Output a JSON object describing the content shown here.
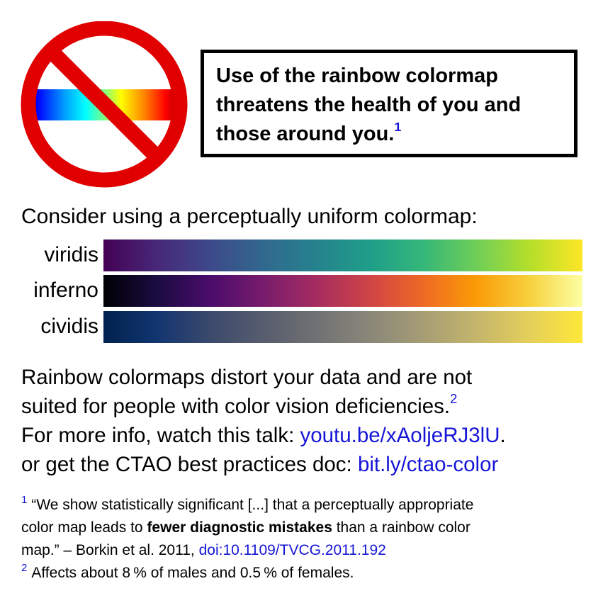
{
  "warning": {
    "lines": [
      "Use of the rainbow colormap",
      "threatens the health of you and",
      "those around you."
    ],
    "footnote_ref": "1"
  },
  "consider": "Consider using a perceptually uniform colormap:",
  "colormaps": [
    {
      "label": "viridis"
    },
    {
      "label": "inferno"
    },
    {
      "label": "cividis"
    }
  ],
  "body": {
    "line1": "Rainbow colormaps distort your data and are not",
    "line2": "suited for people with color vision deficiencies.",
    "line2_ref": "2",
    "line3_prefix": "For more info, watch this talk:",
    "line3_link": "youtu.be/xAoljeRJ3lU",
    "line3_suffix": ".",
    "line4_prefix": "or get the CTAO best practices doc:",
    "line4_link": "bit.ly/ctao-color"
  },
  "footnotes": {
    "fn1_mark": "1",
    "fn1_line1": "“We show statistically significant [...] that a perceptually appropriate",
    "fn1_line2_pre": "color map leads to",
    "fn1_line2_bold": "fewer diagnostic mistakes",
    "fn1_line2_post": "than a rainbow color",
    "fn1_line3": "map.” – Borkin et al. 2011,",
    "fn1_link": "doi:10.1109/TVCG.2011.192",
    "fn2_mark": "2",
    "fn2_text": "Affects about 8 % of males and 0.5 % of females."
  },
  "colors": {
    "link": "#1515d6",
    "prohibition_red": "#e00000"
  },
  "icons": {
    "no_sign": "no-rainbow-prohibition-icon"
  }
}
